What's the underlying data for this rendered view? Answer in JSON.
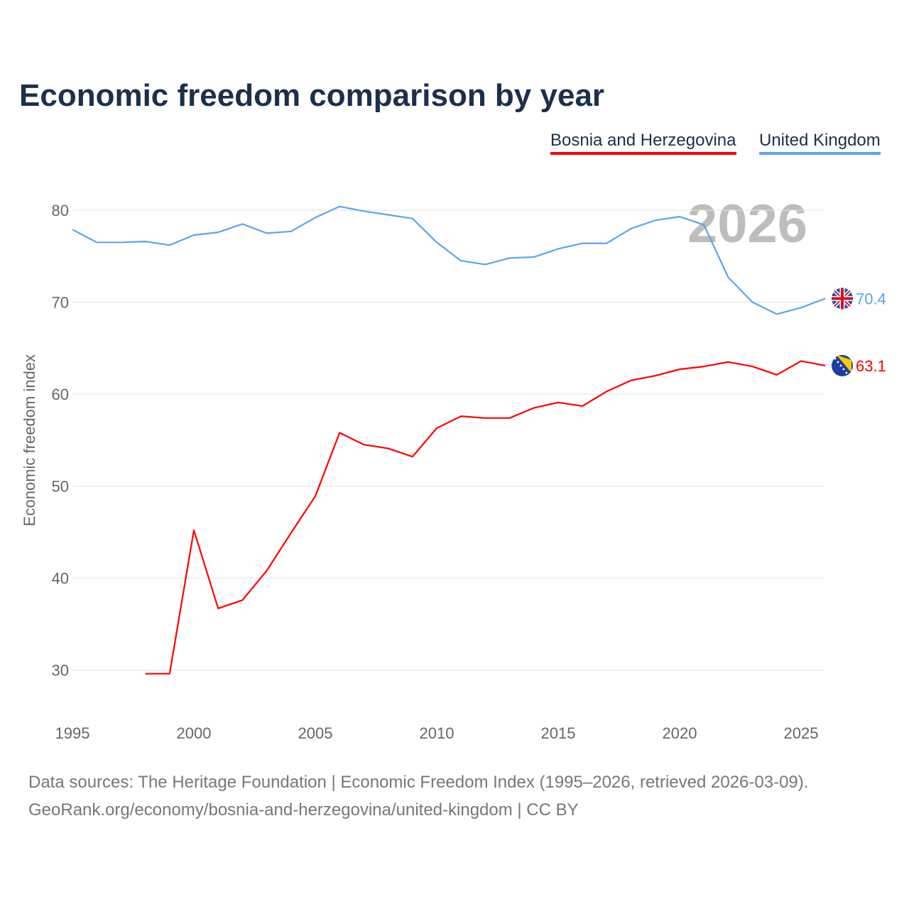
{
  "chart_data": {
    "type": "line",
    "title": "Economic freedom comparison by year",
    "xlabel": "",
    "ylabel": "Economic freedom index",
    "xlim": [
      1995,
      2026
    ],
    "ylim": [
      25,
      85
    ],
    "yticks": [
      30,
      40,
      50,
      60,
      70,
      80
    ],
    "xticks": [
      1995,
      2000,
      2005,
      2010,
      2015,
      2020,
      2025
    ],
    "grid": true,
    "legend_position": "top-right",
    "current_year_label": "2026",
    "x": [
      1995,
      1996,
      1997,
      1998,
      1999,
      2000,
      2001,
      2002,
      2003,
      2004,
      2005,
      2006,
      2007,
      2008,
      2009,
      2010,
      2011,
      2012,
      2013,
      2014,
      2015,
      2016,
      2017,
      2018,
      2019,
      2020,
      2021,
      2022,
      2023,
      2024,
      2025,
      2026
    ],
    "series": [
      {
        "name": "Bosnia and Herzegovina",
        "color": "#ff0000",
        "end_label": "63.1",
        "values": [
          null,
          null,
          null,
          29.6,
          29.6,
          45.2,
          36.7,
          37.6,
          40.8,
          44.9,
          48.9,
          55.8,
          54.5,
          54.1,
          53.2,
          56.3,
          57.6,
          57.4,
          57.4,
          58.5,
          59.1,
          58.7,
          60.3,
          61.5,
          62.0,
          62.7,
          63.0,
          63.5,
          63.0,
          62.1,
          63.6,
          63.1
        ]
      },
      {
        "name": "United Kingdom",
        "color": "#5aa5ee",
        "end_label": "70.4",
        "values": [
          77.9,
          76.5,
          76.5,
          76.6,
          76.2,
          77.3,
          77.6,
          78.5,
          77.5,
          77.7,
          79.2,
          80.4,
          79.9,
          79.5,
          79.1,
          76.5,
          74.5,
          74.1,
          74.8,
          74.9,
          75.8,
          76.4,
          76.4,
          78.0,
          78.9,
          79.3,
          78.4,
          72.7,
          70.0,
          68.7,
          69.4,
          70.4
        ]
      }
    ]
  },
  "footer": {
    "line1": "Data sources: The Heritage Foundation | Economic Freedom Index (1995–2026, retrieved 2026-03-09).",
    "line2": "GeoRank.org/economy/bosnia-and-herzegovina/united-kingdom | CC BY"
  }
}
